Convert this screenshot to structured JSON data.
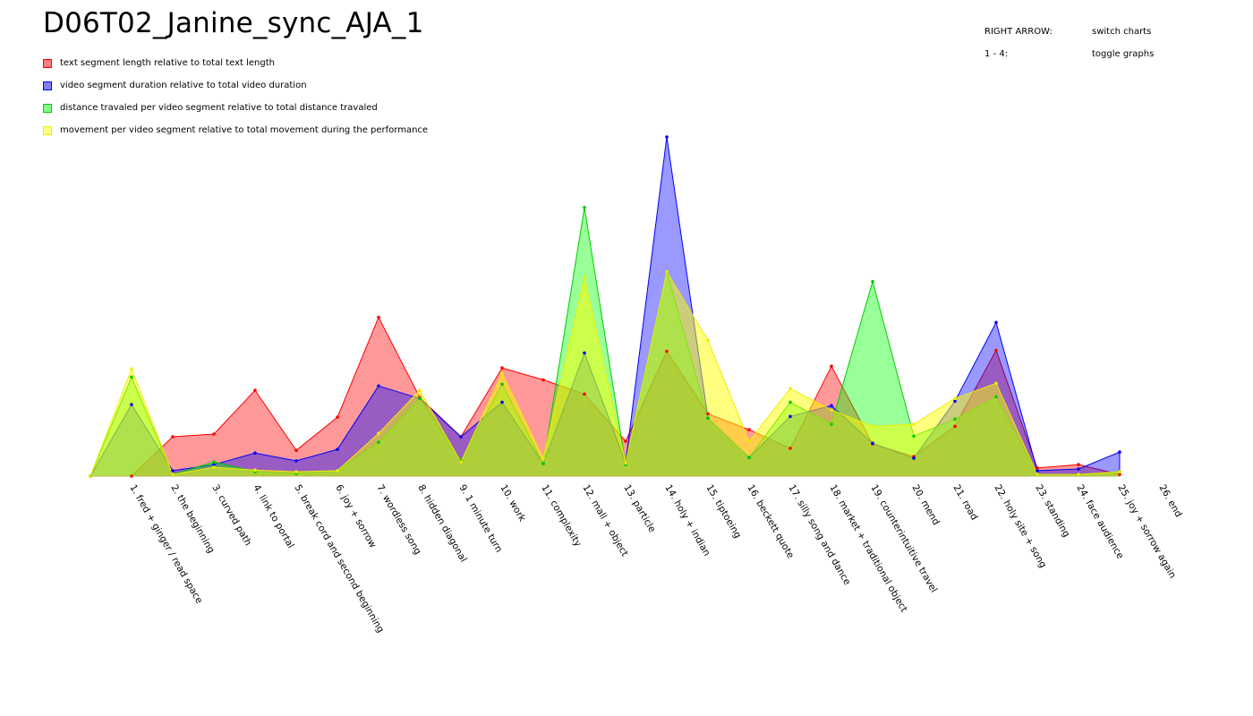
{
  "page": {
    "title": "D06T02_Janine_sync_AJA_1"
  },
  "help": [
    {
      "key": "RIGHT ARROW:",
      "action": "switch charts"
    },
    {
      "key": "1 - 4:",
      "action": "toggle graphs"
    }
  ],
  "chart_data": {
    "type": "area",
    "title": "D06T02_Janine_sync_AJA_1",
    "xlabel": "",
    "ylabel": "",
    "ylim": [
      0,
      100
    ],
    "grid": false,
    "legend_placement": "top-left",
    "categories": [
      "1. fred + ginger / read space",
      "2. the beginning",
      "3. curved path",
      "4. link to portal",
      "5. break cord and second beginning",
      "6. joy + sorrow",
      "7. wordless song",
      "8. hidden diagonal",
      "9. 1 minute turn",
      "10. work",
      "11. complexity",
      "12. mall + object",
      "13. particle",
      "14. holy + indian",
      "15. tiptoeing",
      "16. beckett quote",
      "17. silly song and dance",
      "18. market + traditional object",
      "19. counterintuitive travel",
      "20. mend",
      "21. road",
      "22. holy site + song",
      "23. standing",
      "24. face audience",
      "25. joy + sorrow again",
      "26. end"
    ],
    "series": [
      {
        "name": "text segment length relative to total text length",
        "fill": "rgba(255,0,0,0.40)",
        "stroke": "#ff0000",
        "swatch": "#ff8080",
        "values": [
          0,
          0,
          11.6,
          12.4,
          25.3,
          7.6,
          17.4,
          46.8,
          23.2,
          11.6,
          31.9,
          28.4,
          24.2,
          10.3,
          36.8,
          18.4,
          13.7,
          8.2,
          32.4,
          9.5,
          5.8,
          14.7,
          37.1,
          2.4,
          3.4,
          0.5
        ]
      },
      {
        "name": "video segment duration relative to total video duration",
        "fill": "rgba(0,0,255,0.40)",
        "stroke": "#0000ff",
        "swatch": "#8080ff",
        "values": [
          0,
          21.1,
          1.6,
          3.4,
          6.8,
          4.5,
          7.9,
          26.6,
          22.9,
          11.6,
          21.8,
          3.7,
          36.3,
          3.9,
          100,
          17.1,
          5.5,
          17.6,
          20.8,
          9.7,
          5.3,
          22.1,
          45.3,
          1.6,
          2.1,
          7.1
        ]
      },
      {
        "name": "distance travaled per video segment relative to total distance travaled",
        "fill": "rgba(0,255,0,0.40)",
        "stroke": "#00cc00",
        "swatch": "#80ff80",
        "values": [
          0,
          29.2,
          0.5,
          4.2,
          1.3,
          0.8,
          1.6,
          10.0,
          22.9,
          4.5,
          27.1,
          3.7,
          79.2,
          3.4,
          60.3,
          17.1,
          5.5,
          21.8,
          15.3,
          57.4,
          11.8,
          16.8,
          23.4,
          0.5,
          0.5,
          1.3
        ]
      },
      {
        "name": "movement per video segment relative to total movement during the performance",
        "fill": "rgba(255,255,0,0.50)",
        "stroke": "#eeee00",
        "swatch": "#ffff80",
        "values": [
          0,
          31.6,
          0.5,
          2.6,
          1.8,
          1.3,
          1.6,
          12.6,
          25.3,
          4.2,
          30.3,
          5.3,
          58.7,
          3.9,
          60.3,
          40.0,
          10.3,
          25.8,
          19.5,
          14.7,
          15.3,
          22.9,
          27.4,
          0.5,
          0.5,
          1.3
        ]
      }
    ]
  }
}
